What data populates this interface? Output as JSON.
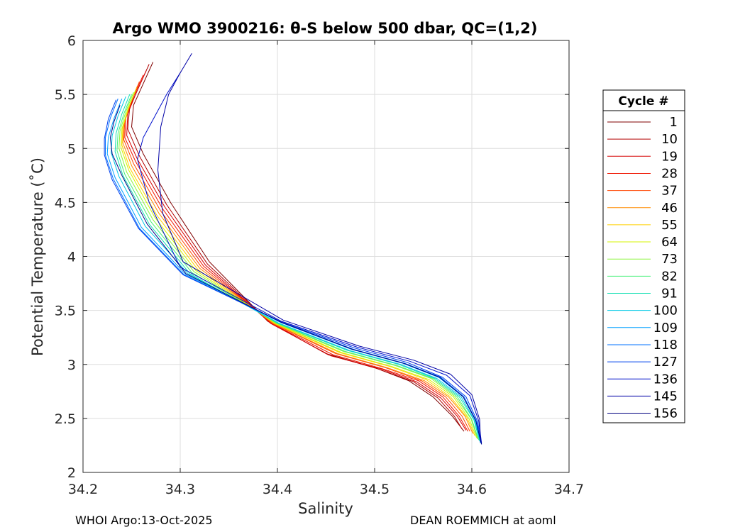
{
  "chart_data": {
    "type": "line",
    "title": "Argo WMO 3900216: θ-S below 500 dbar,  QC=(1,2)",
    "xlabel": "Salinity",
    "ylabel": "Potential Temperature (˚C)",
    "xlim": [
      34.2,
      34.7
    ],
    "ylim": [
      2,
      6
    ],
    "xticks": [
      34.2,
      34.3,
      34.4,
      34.5,
      34.6,
      34.7
    ],
    "xtick_labels": [
      "34.2",
      "34.3",
      "34.4",
      "34.5",
      "34.6",
      "34.7"
    ],
    "yticks": [
      2,
      2.5,
      3,
      3.5,
      4,
      4.5,
      5,
      5.5,
      6
    ],
    "ytick_labels": [
      "2",
      "2.5",
      "3",
      "3.5",
      "4",
      "4.5",
      "5",
      "5.5",
      "6"
    ],
    "grid": true,
    "legend": {
      "title": "Cycle #",
      "position": "right-outside",
      "entries": [
        {
          "label": "1",
          "color": "#800000"
        },
        {
          "label": "10",
          "color": "#b30000"
        },
        {
          "label": "19",
          "color": "#d60000"
        },
        {
          "label": "28",
          "color": "#f01400"
        },
        {
          "label": "37",
          "color": "#ff4500"
        },
        {
          "label": "46",
          "color": "#ff8c00"
        },
        {
          "label": "55",
          "color": "#ffd000"
        },
        {
          "label": "64",
          "color": "#d4f500"
        },
        {
          "label": "73",
          "color": "#8cf53c"
        },
        {
          "label": "82",
          "color": "#45f077"
        },
        {
          "label": "91",
          "color": "#14e0b4"
        },
        {
          "label": "100",
          "color": "#00c8e6"
        },
        {
          "label": "109",
          "color": "#00a0ff"
        },
        {
          "label": "118",
          "color": "#0070ff"
        },
        {
          "label": "127",
          "color": "#0040ee"
        },
        {
          "label": "136",
          "color": "#0010cc"
        },
        {
          "label": "145",
          "color": "#0000a6"
        },
        {
          "label": "156",
          "color": "#000080"
        }
      ]
    },
    "series": [
      {
        "name": "1",
        "color": "#800000",
        "x": [
          34.272,
          34.262,
          34.252,
          34.25,
          34.262,
          34.29,
          34.33,
          34.39,
          34.45,
          34.5,
          34.535,
          34.56,
          34.58,
          34.592
        ],
        "y": [
          5.8,
          5.6,
          5.4,
          5.2,
          4.95,
          4.5,
          3.95,
          3.4,
          3.1,
          2.97,
          2.85,
          2.7,
          2.52,
          2.38
        ]
      },
      {
        "name": "10",
        "color": "#b30000",
        "x": [
          34.268,
          34.258,
          34.248,
          34.246,
          34.258,
          34.286,
          34.328,
          34.392,
          34.452,
          34.503,
          34.54,
          34.565,
          34.582,
          34.59
        ],
        "y": [
          5.78,
          5.58,
          5.38,
          5.18,
          4.93,
          4.48,
          3.93,
          3.39,
          3.09,
          2.96,
          2.84,
          2.69,
          2.52,
          2.4
        ]
      },
      {
        "name": "19",
        "color": "#d60000",
        "x": [
          34.265,
          34.255,
          34.246,
          34.245,
          34.256,
          34.284,
          34.326,
          34.393,
          34.455,
          34.506,
          34.543,
          34.568,
          34.585,
          34.594
        ],
        "y": [
          5.72,
          5.52,
          5.32,
          5.12,
          4.9,
          4.46,
          3.92,
          3.38,
          3.08,
          2.96,
          2.84,
          2.69,
          2.52,
          2.39
        ]
      },
      {
        "name": "28",
        "color": "#f01400",
        "x": [
          34.262,
          34.252,
          34.244,
          34.243,
          34.254,
          34.282,
          34.324,
          34.394,
          34.457,
          34.508,
          34.545,
          34.57,
          34.587,
          34.596
        ],
        "y": [
          5.68,
          5.48,
          5.28,
          5.1,
          4.88,
          4.44,
          3.91,
          3.38,
          3.09,
          2.96,
          2.85,
          2.7,
          2.52,
          2.38
        ]
      },
      {
        "name": "37",
        "color": "#ff4500",
        "x": [
          34.258,
          34.25,
          34.243,
          34.242,
          34.252,
          34.28,
          34.322,
          34.395,
          34.46,
          34.511,
          34.548,
          34.573,
          34.59,
          34.598
        ],
        "y": [
          5.62,
          5.44,
          5.26,
          5.08,
          4.86,
          4.42,
          3.9,
          3.38,
          3.1,
          2.97,
          2.85,
          2.7,
          2.52,
          2.38
        ]
      },
      {
        "name": "46",
        "color": "#ff8c00",
        "x": [
          34.256,
          34.248,
          34.242,
          34.241,
          34.25,
          34.278,
          34.32,
          34.396,
          34.462,
          34.513,
          34.551,
          34.576,
          34.593,
          34.601
        ],
        "y": [
          5.58,
          5.4,
          5.22,
          5.05,
          4.84,
          4.4,
          3.89,
          3.38,
          3.1,
          2.97,
          2.85,
          2.7,
          2.52,
          2.36
        ]
      },
      {
        "name": "55",
        "color": "#ffd000",
        "x": [
          34.255,
          34.247,
          34.241,
          34.24,
          34.248,
          34.276,
          34.318,
          34.397,
          34.464,
          34.516,
          34.553,
          34.578,
          34.595,
          34.603
        ],
        "y": [
          5.56,
          5.38,
          5.2,
          5.03,
          4.82,
          4.38,
          3.88,
          3.38,
          3.11,
          2.98,
          2.86,
          2.7,
          2.51,
          2.34
        ]
      },
      {
        "name": "64",
        "color": "#d4f500",
        "x": [
          34.254,
          34.246,
          34.24,
          34.239,
          34.247,
          34.274,
          34.316,
          34.398,
          34.466,
          34.518,
          34.556,
          34.581,
          34.597,
          34.605
        ],
        "y": [
          5.54,
          5.36,
          5.18,
          5.01,
          4.8,
          4.36,
          3.87,
          3.38,
          3.11,
          2.98,
          2.86,
          2.7,
          2.5,
          2.32
        ]
      },
      {
        "name": "73",
        "color": "#8cf53c",
        "x": [
          34.252,
          34.244,
          34.238,
          34.237,
          34.245,
          34.272,
          34.314,
          34.399,
          34.468,
          34.521,
          34.558,
          34.583,
          34.599,
          34.606
        ],
        "y": [
          5.52,
          5.34,
          5.16,
          5.0,
          4.78,
          4.34,
          3.86,
          3.38,
          3.12,
          2.99,
          2.87,
          2.7,
          2.5,
          2.31
        ]
      },
      {
        "name": "82",
        "color": "#45f077",
        "x": [
          34.25,
          34.242,
          34.236,
          34.235,
          34.243,
          34.27,
          34.312,
          34.4,
          34.47,
          34.523,
          34.56,
          34.585,
          34.6,
          34.607
        ],
        "y": [
          5.5,
          5.32,
          5.14,
          4.98,
          4.76,
          4.32,
          3.85,
          3.38,
          3.12,
          2.99,
          2.87,
          2.7,
          2.49,
          2.3
        ]
      },
      {
        "name": "91",
        "color": "#14e0b4",
        "x": [
          34.248,
          34.24,
          34.234,
          34.233,
          34.241,
          34.268,
          34.31,
          34.401,
          34.472,
          34.525,
          34.562,
          34.587,
          34.602,
          34.608
        ],
        "y": [
          5.5,
          5.32,
          5.14,
          4.97,
          4.75,
          4.3,
          3.84,
          3.38,
          3.13,
          3.0,
          2.87,
          2.7,
          2.49,
          2.29
        ]
      },
      {
        "name": "100",
        "color": "#00c8e6",
        "x": [
          34.244,
          34.236,
          34.23,
          34.229,
          34.237,
          34.264,
          34.308,
          34.402,
          34.474,
          34.527,
          34.564,
          34.589,
          34.603,
          34.609
        ],
        "y": [
          5.48,
          5.3,
          5.12,
          4.96,
          4.74,
          4.28,
          3.84,
          3.38,
          3.13,
          3.0,
          2.87,
          2.7,
          2.48,
          2.28
        ]
      },
      {
        "name": "109",
        "color": "#00a0ff",
        "x": [
          34.24,
          34.232,
          34.226,
          34.225,
          34.233,
          34.26,
          34.306,
          34.403,
          34.476,
          34.529,
          34.566,
          34.591,
          34.604,
          34.609
        ],
        "y": [
          5.46,
          5.28,
          5.1,
          4.95,
          4.73,
          4.27,
          3.83,
          3.39,
          3.14,
          3.01,
          2.88,
          2.7,
          2.48,
          2.27
        ]
      },
      {
        "name": "118",
        "color": "#0070ff",
        "x": [
          34.236,
          34.228,
          34.223,
          34.223,
          34.231,
          34.258,
          34.304,
          34.404,
          34.478,
          34.531,
          34.568,
          34.592,
          34.605,
          34.61
        ],
        "y": [
          5.46,
          5.28,
          5.1,
          4.94,
          4.72,
          4.26,
          3.83,
          3.39,
          3.14,
          3.01,
          2.88,
          2.7,
          2.47,
          2.27
        ]
      },
      {
        "name": "127",
        "color": "#0040ee",
        "x": [
          34.234,
          34.226,
          34.222,
          34.222,
          34.23,
          34.257,
          34.303,
          34.405,
          34.48,
          34.533,
          34.57,
          34.594,
          34.606,
          34.61
        ],
        "y": [
          5.45,
          5.27,
          5.09,
          4.94,
          4.71,
          4.26,
          3.83,
          3.39,
          3.15,
          3.02,
          2.88,
          2.7,
          2.47,
          2.26
        ]
      },
      {
        "name": "136",
        "color": "#0010cc",
        "x": [
          34.3,
          34.286,
          34.274,
          34.262,
          34.256,
          34.268,
          34.3,
          34.404,
          34.482,
          34.536,
          34.574,
          34.598,
          34.607,
          34.61
        ],
        "y": [
          5.7,
          5.5,
          5.3,
          5.1,
          4.9,
          4.5,
          3.9,
          3.4,
          3.16,
          3.03,
          2.9,
          2.71,
          2.48,
          2.27
        ]
      },
      {
        "name": "145",
        "color": "#0000a6",
        "x": [
          34.312,
          34.3,
          34.288,
          34.28,
          34.277,
          34.282,
          34.303,
          34.406,
          34.484,
          34.54,
          34.578,
          34.6,
          34.608,
          34.609
        ],
        "y": [
          5.88,
          5.7,
          5.5,
          5.2,
          4.8,
          4.4,
          3.95,
          3.41,
          3.17,
          3.04,
          2.91,
          2.72,
          2.49,
          2.28
        ]
      },
      {
        "name": "156",
        "color": "#000080",
        "x": [
          34.238,
          34.232,
          34.228,
          34.23,
          34.24,
          34.266,
          34.306,
          34.404,
          34.477,
          34.53,
          34.567,
          34.591,
          34.604,
          34.61
        ],
        "y": [
          5.4,
          5.25,
          5.1,
          4.95,
          4.75,
          4.3,
          3.84,
          3.39,
          3.14,
          3.01,
          2.88,
          2.7,
          2.48,
          2.26
        ]
      }
    ]
  },
  "footer": {
    "left": "WHOI Argo:13-Oct-2025",
    "right": "DEAN ROEMMICH at aoml"
  }
}
